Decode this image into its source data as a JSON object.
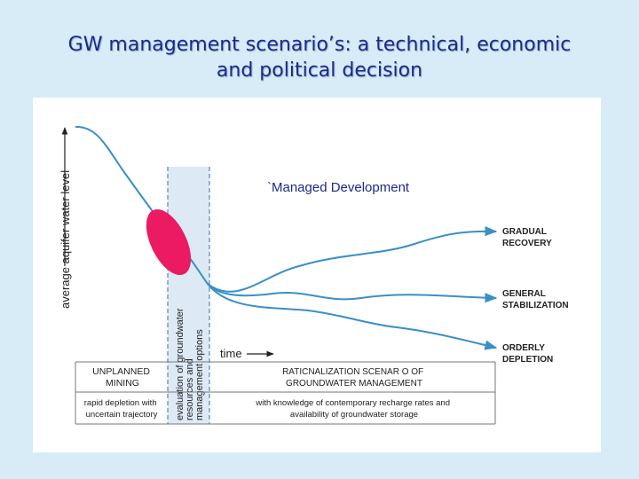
{
  "slide": {
    "title_line1": "GW management scenario’s: a technical, economic",
    "title_line2": "and political decision"
  },
  "diagram": {
    "y_axis_label": "average aquifer water level",
    "x_axis_label": "time",
    "box_label_line1": "`Managed Development",
    "evaluation_band_lines": [
      "evaluation of groundwater",
      "resources and",
      "management options"
    ],
    "scenarios": [
      {
        "line1": "GRADUAL",
        "line2": "RECOVERY"
      },
      {
        "line1": "GENERAL",
        "line2": "STABILIZATION"
      },
      {
        "line1": "ORDERLY",
        "line2": "DEPLETION"
      }
    ],
    "table": {
      "phase1_title_line1": "UNPLANNED",
      "phase1_title_line2": "MINING",
      "phase1_desc_line1": "rapid depletion with",
      "phase1_desc_line2": "uncertain trajectory",
      "phase2_title_line1": "RATICNALIZATION SCENAR O OF",
      "phase2_title_line2": "GROUNDWATER MANAGEMENT",
      "phase2_desc_line1": "with knowledge of contemporary recharge rates and",
      "phase2_desc_line2": "availability of groundwater storage"
    },
    "colors": {
      "curve": "#3a8fc7",
      "ellipse": "#ec1a63",
      "band": "#ddeaf6",
      "title": "#1a2a8c",
      "slide_bg": "#d8ecf7"
    }
  }
}
